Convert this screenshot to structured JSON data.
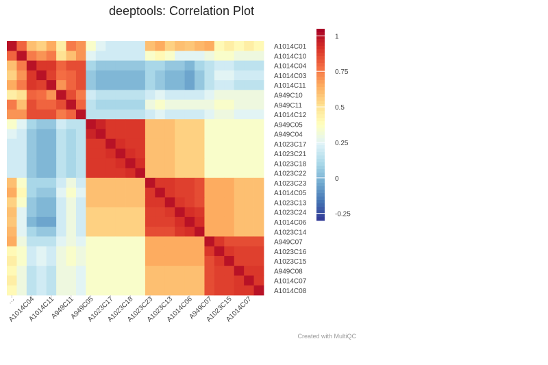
{
  "chart_data": {
    "type": "heatmap",
    "title": "deeptools: Correlation Plot",
    "rows": [
      "A1014C01",
      "A1014C10",
      "A1014C04",
      "A1014C03",
      "A1014C11",
      "A949C10",
      "A949C11",
      "A1014C12",
      "A949C05",
      "A949C04",
      "A1023C17",
      "A1023C21",
      "A1023C18",
      "A1023C22",
      "A1023C23",
      "A1014C05",
      "A1023C13",
      "A1023C24",
      "A1014C06",
      "A1023C14",
      "A949C07",
      "A1023C16",
      "A1023C15",
      "A949C08",
      "A1014C07",
      "A1014C08"
    ],
    "x_tick_labels": [
      "…",
      "A1014C04",
      "A1014C11",
      "A949C11",
      "A949C05",
      "A1023C17",
      "A1023C18",
      "A1023C23",
      "A1023C13",
      "A1014C06",
      "A949C07",
      "A1023C15",
      "A1014C07"
    ],
    "values": [
      [
        1.0,
        0.8,
        0.6,
        0.55,
        0.65,
        0.45,
        0.75,
        0.7,
        0.35,
        0.25,
        0.2,
        0.2,
        0.2,
        0.2,
        0.6,
        0.65,
        0.55,
        0.6,
        0.58,
        0.62,
        0.65,
        0.4,
        0.45,
        0.4,
        0.45,
        0.4
      ],
      [
        0.8,
        1.0,
        0.75,
        0.7,
        0.75,
        0.5,
        0.6,
        0.7,
        0.25,
        0.2,
        0.2,
        0.2,
        0.2,
        0.2,
        0.35,
        0.4,
        0.35,
        0.25,
        0.25,
        0.25,
        0.3,
        0.35,
        0.35,
        0.3,
        0.3,
        0.3
      ],
      [
        0.6,
        0.75,
        1.0,
        0.9,
        0.9,
        0.8,
        0.85,
        0.85,
        0.1,
        0.05,
        0.05,
        0.05,
        0.05,
        0.05,
        0.1,
        0.1,
        0.05,
        0.05,
        0.0,
        0.1,
        0.15,
        0.2,
        0.2,
        0.15,
        0.15,
        0.15
      ],
      [
        0.55,
        0.7,
        0.9,
        1.0,
        0.88,
        0.78,
        0.8,
        0.85,
        0.05,
        0.0,
        0.0,
        0.0,
        0.0,
        0.0,
        0.1,
        0.05,
        0.0,
        0.0,
        -0.05,
        0.05,
        0.15,
        0.25,
        0.25,
        0.2,
        0.2,
        0.2
      ],
      [
        0.65,
        0.75,
        0.9,
        0.88,
        1.0,
        0.7,
        0.8,
        0.85,
        0.05,
        0.0,
        0.0,
        0.0,
        0.0,
        0.0,
        0.1,
        0.05,
        0.0,
        0.0,
        -0.05,
        0.05,
        0.15,
        0.2,
        0.2,
        0.15,
        0.15,
        0.15
      ],
      [
        0.45,
        0.5,
        0.8,
        0.78,
        0.7,
        1.0,
        0.85,
        0.75,
        0.2,
        0.15,
        0.15,
        0.15,
        0.15,
        0.15,
        0.2,
        0.25,
        0.2,
        0.2,
        0.2,
        0.2,
        0.25,
        0.3,
        0.3,
        0.3,
        0.3,
        0.3
      ],
      [
        0.75,
        0.6,
        0.85,
        0.8,
        0.8,
        0.85,
        1.0,
        0.8,
        0.15,
        0.1,
        0.1,
        0.1,
        0.1,
        0.1,
        0.3,
        0.35,
        0.3,
        0.3,
        0.3,
        0.3,
        0.3,
        0.35,
        0.35,
        0.3,
        0.3,
        0.3
      ],
      [
        0.7,
        0.7,
        0.85,
        0.85,
        0.85,
        0.75,
        0.8,
        1.0,
        0.15,
        0.15,
        0.15,
        0.15,
        0.15,
        0.15,
        0.2,
        0.25,
        0.2,
        0.2,
        0.2,
        0.2,
        0.25,
        0.3,
        0.3,
        0.25,
        0.25,
        0.25
      ],
      [
        0.35,
        0.25,
        0.1,
        0.05,
        0.05,
        0.2,
        0.15,
        0.15,
        1.0,
        0.95,
        0.9,
        0.9,
        0.9,
        0.9,
        0.6,
        0.6,
        0.6,
        0.55,
        0.55,
        0.55,
        0.35,
        0.35,
        0.35,
        0.35,
        0.35,
        0.35
      ],
      [
        0.25,
        0.2,
        0.05,
        0.0,
        0.0,
        0.15,
        0.1,
        0.15,
        0.95,
        1.0,
        0.9,
        0.9,
        0.9,
        0.9,
        0.6,
        0.6,
        0.6,
        0.55,
        0.55,
        0.55,
        0.35,
        0.35,
        0.35,
        0.35,
        0.35,
        0.35
      ],
      [
        0.2,
        0.2,
        0.05,
        0.0,
        0.0,
        0.15,
        0.1,
        0.15,
        0.9,
        0.9,
        1.0,
        0.92,
        0.9,
        0.9,
        0.6,
        0.6,
        0.6,
        0.55,
        0.55,
        0.55,
        0.35,
        0.35,
        0.35,
        0.35,
        0.35,
        0.35
      ],
      [
        0.2,
        0.2,
        0.05,
        0.0,
        0.0,
        0.15,
        0.1,
        0.15,
        0.9,
        0.9,
        0.92,
        1.0,
        0.92,
        0.9,
        0.6,
        0.6,
        0.6,
        0.55,
        0.55,
        0.55,
        0.35,
        0.35,
        0.35,
        0.35,
        0.35,
        0.35
      ],
      [
        0.2,
        0.2,
        0.05,
        0.0,
        0.0,
        0.15,
        0.1,
        0.15,
        0.9,
        0.9,
        0.9,
        0.92,
        1.0,
        0.92,
        0.6,
        0.6,
        0.6,
        0.55,
        0.55,
        0.55,
        0.35,
        0.35,
        0.35,
        0.35,
        0.35,
        0.35
      ],
      [
        0.2,
        0.2,
        0.05,
        0.0,
        0.0,
        0.15,
        0.1,
        0.15,
        0.9,
        0.9,
        0.9,
        0.9,
        0.92,
        1.0,
        0.6,
        0.6,
        0.6,
        0.55,
        0.55,
        0.55,
        0.35,
        0.35,
        0.35,
        0.35,
        0.35,
        0.35
      ],
      [
        0.6,
        0.35,
        0.1,
        0.1,
        0.1,
        0.2,
        0.3,
        0.2,
        0.6,
        0.6,
        0.6,
        0.6,
        0.6,
        0.6,
        1.0,
        0.9,
        0.9,
        0.88,
        0.88,
        0.85,
        0.65,
        0.65,
        0.65,
        0.6,
        0.6,
        0.6
      ],
      [
        0.65,
        0.4,
        0.1,
        0.05,
        0.05,
        0.25,
        0.35,
        0.25,
        0.6,
        0.6,
        0.6,
        0.6,
        0.6,
        0.6,
        0.9,
        1.0,
        0.9,
        0.88,
        0.88,
        0.85,
        0.65,
        0.65,
        0.65,
        0.6,
        0.6,
        0.6
      ],
      [
        0.55,
        0.35,
        0.05,
        0.0,
        0.0,
        0.2,
        0.3,
        0.2,
        0.6,
        0.6,
        0.6,
        0.6,
        0.6,
        0.6,
        0.9,
        0.9,
        1.0,
        0.9,
        0.88,
        0.85,
        0.65,
        0.65,
        0.65,
        0.6,
        0.6,
        0.6
      ],
      [
        0.6,
        0.25,
        0.05,
        0.0,
        0.0,
        0.2,
        0.3,
        0.2,
        0.55,
        0.55,
        0.55,
        0.55,
        0.55,
        0.55,
        0.88,
        0.88,
        0.9,
        1.0,
        0.92,
        0.9,
        0.65,
        0.65,
        0.65,
        0.6,
        0.6,
        0.6
      ],
      [
        0.58,
        0.25,
        0.0,
        -0.05,
        -0.05,
        0.2,
        0.3,
        0.2,
        0.55,
        0.55,
        0.55,
        0.55,
        0.55,
        0.55,
        0.88,
        0.88,
        0.88,
        0.92,
        1.0,
        0.92,
        0.65,
        0.65,
        0.65,
        0.6,
        0.6,
        0.6
      ],
      [
        0.62,
        0.25,
        0.1,
        0.05,
        0.05,
        0.2,
        0.3,
        0.2,
        0.55,
        0.55,
        0.55,
        0.55,
        0.55,
        0.55,
        0.85,
        0.85,
        0.85,
        0.9,
        0.92,
        1.0,
        0.65,
        0.65,
        0.65,
        0.6,
        0.6,
        0.6
      ],
      [
        0.65,
        0.3,
        0.15,
        0.15,
        0.15,
        0.25,
        0.3,
        0.25,
        0.35,
        0.35,
        0.35,
        0.35,
        0.35,
        0.35,
        0.65,
        0.65,
        0.65,
        0.65,
        0.65,
        0.65,
        1.0,
        0.9,
        0.85,
        0.85,
        0.85,
        0.85
      ],
      [
        0.4,
        0.35,
        0.2,
        0.25,
        0.2,
        0.3,
        0.35,
        0.3,
        0.35,
        0.35,
        0.35,
        0.35,
        0.35,
        0.35,
        0.65,
        0.65,
        0.65,
        0.65,
        0.65,
        0.65,
        0.9,
        1.0,
        0.9,
        0.88,
        0.88,
        0.88
      ],
      [
        0.45,
        0.35,
        0.2,
        0.25,
        0.2,
        0.3,
        0.35,
        0.3,
        0.35,
        0.35,
        0.35,
        0.35,
        0.35,
        0.35,
        0.65,
        0.65,
        0.65,
        0.65,
        0.65,
        0.65,
        0.85,
        0.9,
        1.0,
        0.88,
        0.88,
        0.88
      ],
      [
        0.4,
        0.3,
        0.15,
        0.2,
        0.15,
        0.3,
        0.3,
        0.25,
        0.35,
        0.35,
        0.35,
        0.35,
        0.35,
        0.35,
        0.6,
        0.6,
        0.6,
        0.6,
        0.6,
        0.6,
        0.85,
        0.88,
        0.88,
        1.0,
        0.9,
        0.9
      ],
      [
        0.45,
        0.3,
        0.15,
        0.2,
        0.15,
        0.3,
        0.3,
        0.25,
        0.35,
        0.35,
        0.35,
        0.35,
        0.35,
        0.35,
        0.6,
        0.6,
        0.6,
        0.6,
        0.6,
        0.6,
        0.85,
        0.88,
        0.88,
        0.9,
        1.0,
        0.9
      ],
      [
        0.4,
        0.3,
        0.15,
        0.2,
        0.15,
        0.3,
        0.3,
        0.25,
        0.35,
        0.35,
        0.35,
        0.35,
        0.35,
        0.35,
        0.6,
        0.6,
        0.6,
        0.6,
        0.6,
        0.6,
        0.85,
        0.88,
        0.88,
        0.9,
        0.9,
        1.0
      ]
    ],
    "zmin": -0.3,
    "zmax": 1.05,
    "colorbar_ticks": [
      {
        "label": "1",
        "value": 1.0
      },
      {
        "label": "0.75",
        "value": 0.75
      },
      {
        "label": "0.5",
        "value": 0.5
      },
      {
        "label": "0.25",
        "value": 0.25
      },
      {
        "label": "0",
        "value": 0.0
      },
      {
        "label": "-0.25",
        "value": -0.25
      }
    ],
    "colorscale": [
      "#313695",
      "#4575b4",
      "#74add1",
      "#abd9e9",
      "#e0f3f8",
      "#ffffbf",
      "#fee090",
      "#fdae61",
      "#f46d43",
      "#d73027",
      "#a50026"
    ],
    "legend": "colorbar-right"
  },
  "credit": "Created with MultiQC"
}
